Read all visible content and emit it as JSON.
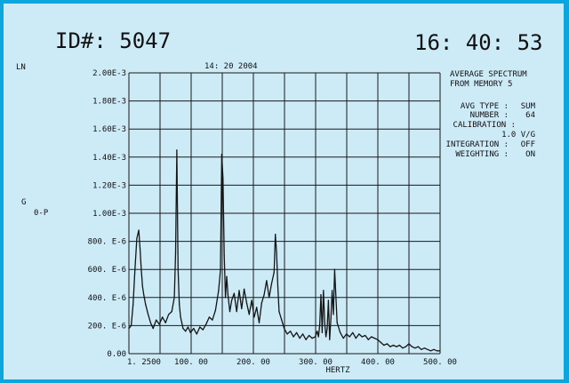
{
  "header": {
    "id_label": "ID#: 5047",
    "time": "16: 40: 53",
    "date_stamp": "14: 20  2004"
  },
  "left_labels": {
    "scale": "LN",
    "units": "G",
    "units_sub": "0-P"
  },
  "info_panel": {
    "title_line1": "AVERAGE SPECTRUM",
    "title_line2": "FROM MEMORY 5",
    "avg_type_label": "AVG TYPE :",
    "avg_type_value": "SUM",
    "number_label": "NUMBER :",
    "number_value": "64",
    "calibration_label": "CALIBRATION :",
    "calibration_value": "1.0 V/G",
    "integration_label": "INTEGRATION :",
    "integration_value": "OFF",
    "weighting_label": "WEIGHTING :",
    "weighting_value": "ON"
  },
  "colors": {
    "border": "#0aa6dc",
    "background": "#cdeaf7",
    "ink": "#151515"
  },
  "chart_data": {
    "type": "line",
    "xlabel": "HERTZ",
    "ylabel": "G 0-P",
    "xlim": [
      1.25,
      500
    ],
    "ylim": [
      0,
      0.002
    ],
    "grid": true,
    "y_tick_labels": [
      "0.00",
      "200. E-6",
      "400. E-6",
      "600. E-6",
      "800. E-6",
      "1.00E-3",
      "1.20E-3",
      "1.40E-3",
      "1.60E-3",
      "1.80E-3",
      "2.00E-3"
    ],
    "x_tick_labels": [
      "1. 2500",
      "100. 00",
      "200. 00",
      "300. 00",
      "400. 00",
      "500. 00"
    ],
    "series": [
      {
        "x": [
          1.25,
          5,
          8,
          11,
          14,
          17,
          19,
          21,
          23,
          25,
          28,
          32,
          36,
          40,
          45,
          50,
          55,
          60,
          65,
          70,
          74,
          76,
          78,
          80,
          82,
          84,
          86,
          88,
          92,
          96,
          100,
          105,
          110,
          115,
          120,
          125,
          130,
          135,
          140,
          145,
          148,
          150,
          152,
          154,
          156,
          158,
          160,
          163,
          166,
          170,
          174,
          178,
          182,
          186,
          190,
          194,
          198,
          202,
          206,
          210,
          214,
          218,
          222,
          226,
          230,
          234,
          236,
          238,
          240,
          242,
          246,
          250,
          255,
          260,
          265,
          270,
          275,
          280,
          285,
          290,
          295,
          300,
          303,
          305,
          307,
          309,
          311,
          313,
          315,
          317,
          319,
          321,
          323,
          325,
          327,
          329,
          331,
          335,
          340,
          345,
          350,
          355,
          360,
          365,
          370,
          375,
          380,
          385,
          390,
          395,
          400,
          405,
          410,
          415,
          420,
          425,
          430,
          435,
          440,
          445,
          450,
          455,
          460,
          465,
          470,
          475,
          480,
          485,
          490,
          495,
          500
        ],
        "values": [
          0.00018,
          0.0002,
          0.00035,
          0.0006,
          0.00082,
          0.00088,
          0.00075,
          0.0006,
          0.00048,
          0.00042,
          0.00035,
          0.00028,
          0.00022,
          0.00018,
          0.00024,
          0.00021,
          0.00026,
          0.00022,
          0.00028,
          0.0003,
          0.0004,
          0.00072,
          0.00145,
          0.0006,
          0.00035,
          0.00026,
          0.00022,
          0.00018,
          0.00016,
          0.00019,
          0.00015,
          0.00018,
          0.00014,
          0.00019,
          0.00017,
          0.00021,
          0.00026,
          0.00024,
          0.00031,
          0.00045,
          0.0006,
          0.00142,
          0.00125,
          0.0007,
          0.0004,
          0.00055,
          0.00042,
          0.0003,
          0.00038,
          0.00043,
          0.0003,
          0.00045,
          0.00032,
          0.00046,
          0.00036,
          0.00028,
          0.00038,
          0.00026,
          0.00033,
          0.00022,
          0.00036,
          0.00042,
          0.00052,
          0.0004,
          0.0005,
          0.00058,
          0.00085,
          0.00072,
          0.00048,
          0.0003,
          0.00024,
          0.00018,
          0.00014,
          0.00016,
          0.00012,
          0.00015,
          0.00011,
          0.00014,
          0.0001,
          0.00013,
          0.00011,
          0.00012,
          0.00016,
          0.00012,
          0.0002,
          0.00042,
          0.00015,
          0.00045,
          0.00022,
          0.00012,
          0.00018,
          0.00038,
          0.0001,
          0.00025,
          0.00045,
          0.00028,
          0.0006,
          0.00022,
          0.00015,
          0.00011,
          0.00014,
          0.00012,
          0.00015,
          0.00011,
          0.00014,
          0.00012,
          0.00013,
          0.0001,
          0.00012,
          0.00011,
          0.0001,
          8e-05,
          6e-05,
          7e-05,
          5e-05,
          6e-05,
          5e-05,
          6e-05,
          4e-05,
          5e-05,
          7e-05,
          5e-05,
          4e-05,
          5e-05,
          3e-05,
          4e-05,
          3e-05,
          2e-05,
          3e-05,
          2e-05,
          2e-05
        ]
      }
    ]
  }
}
